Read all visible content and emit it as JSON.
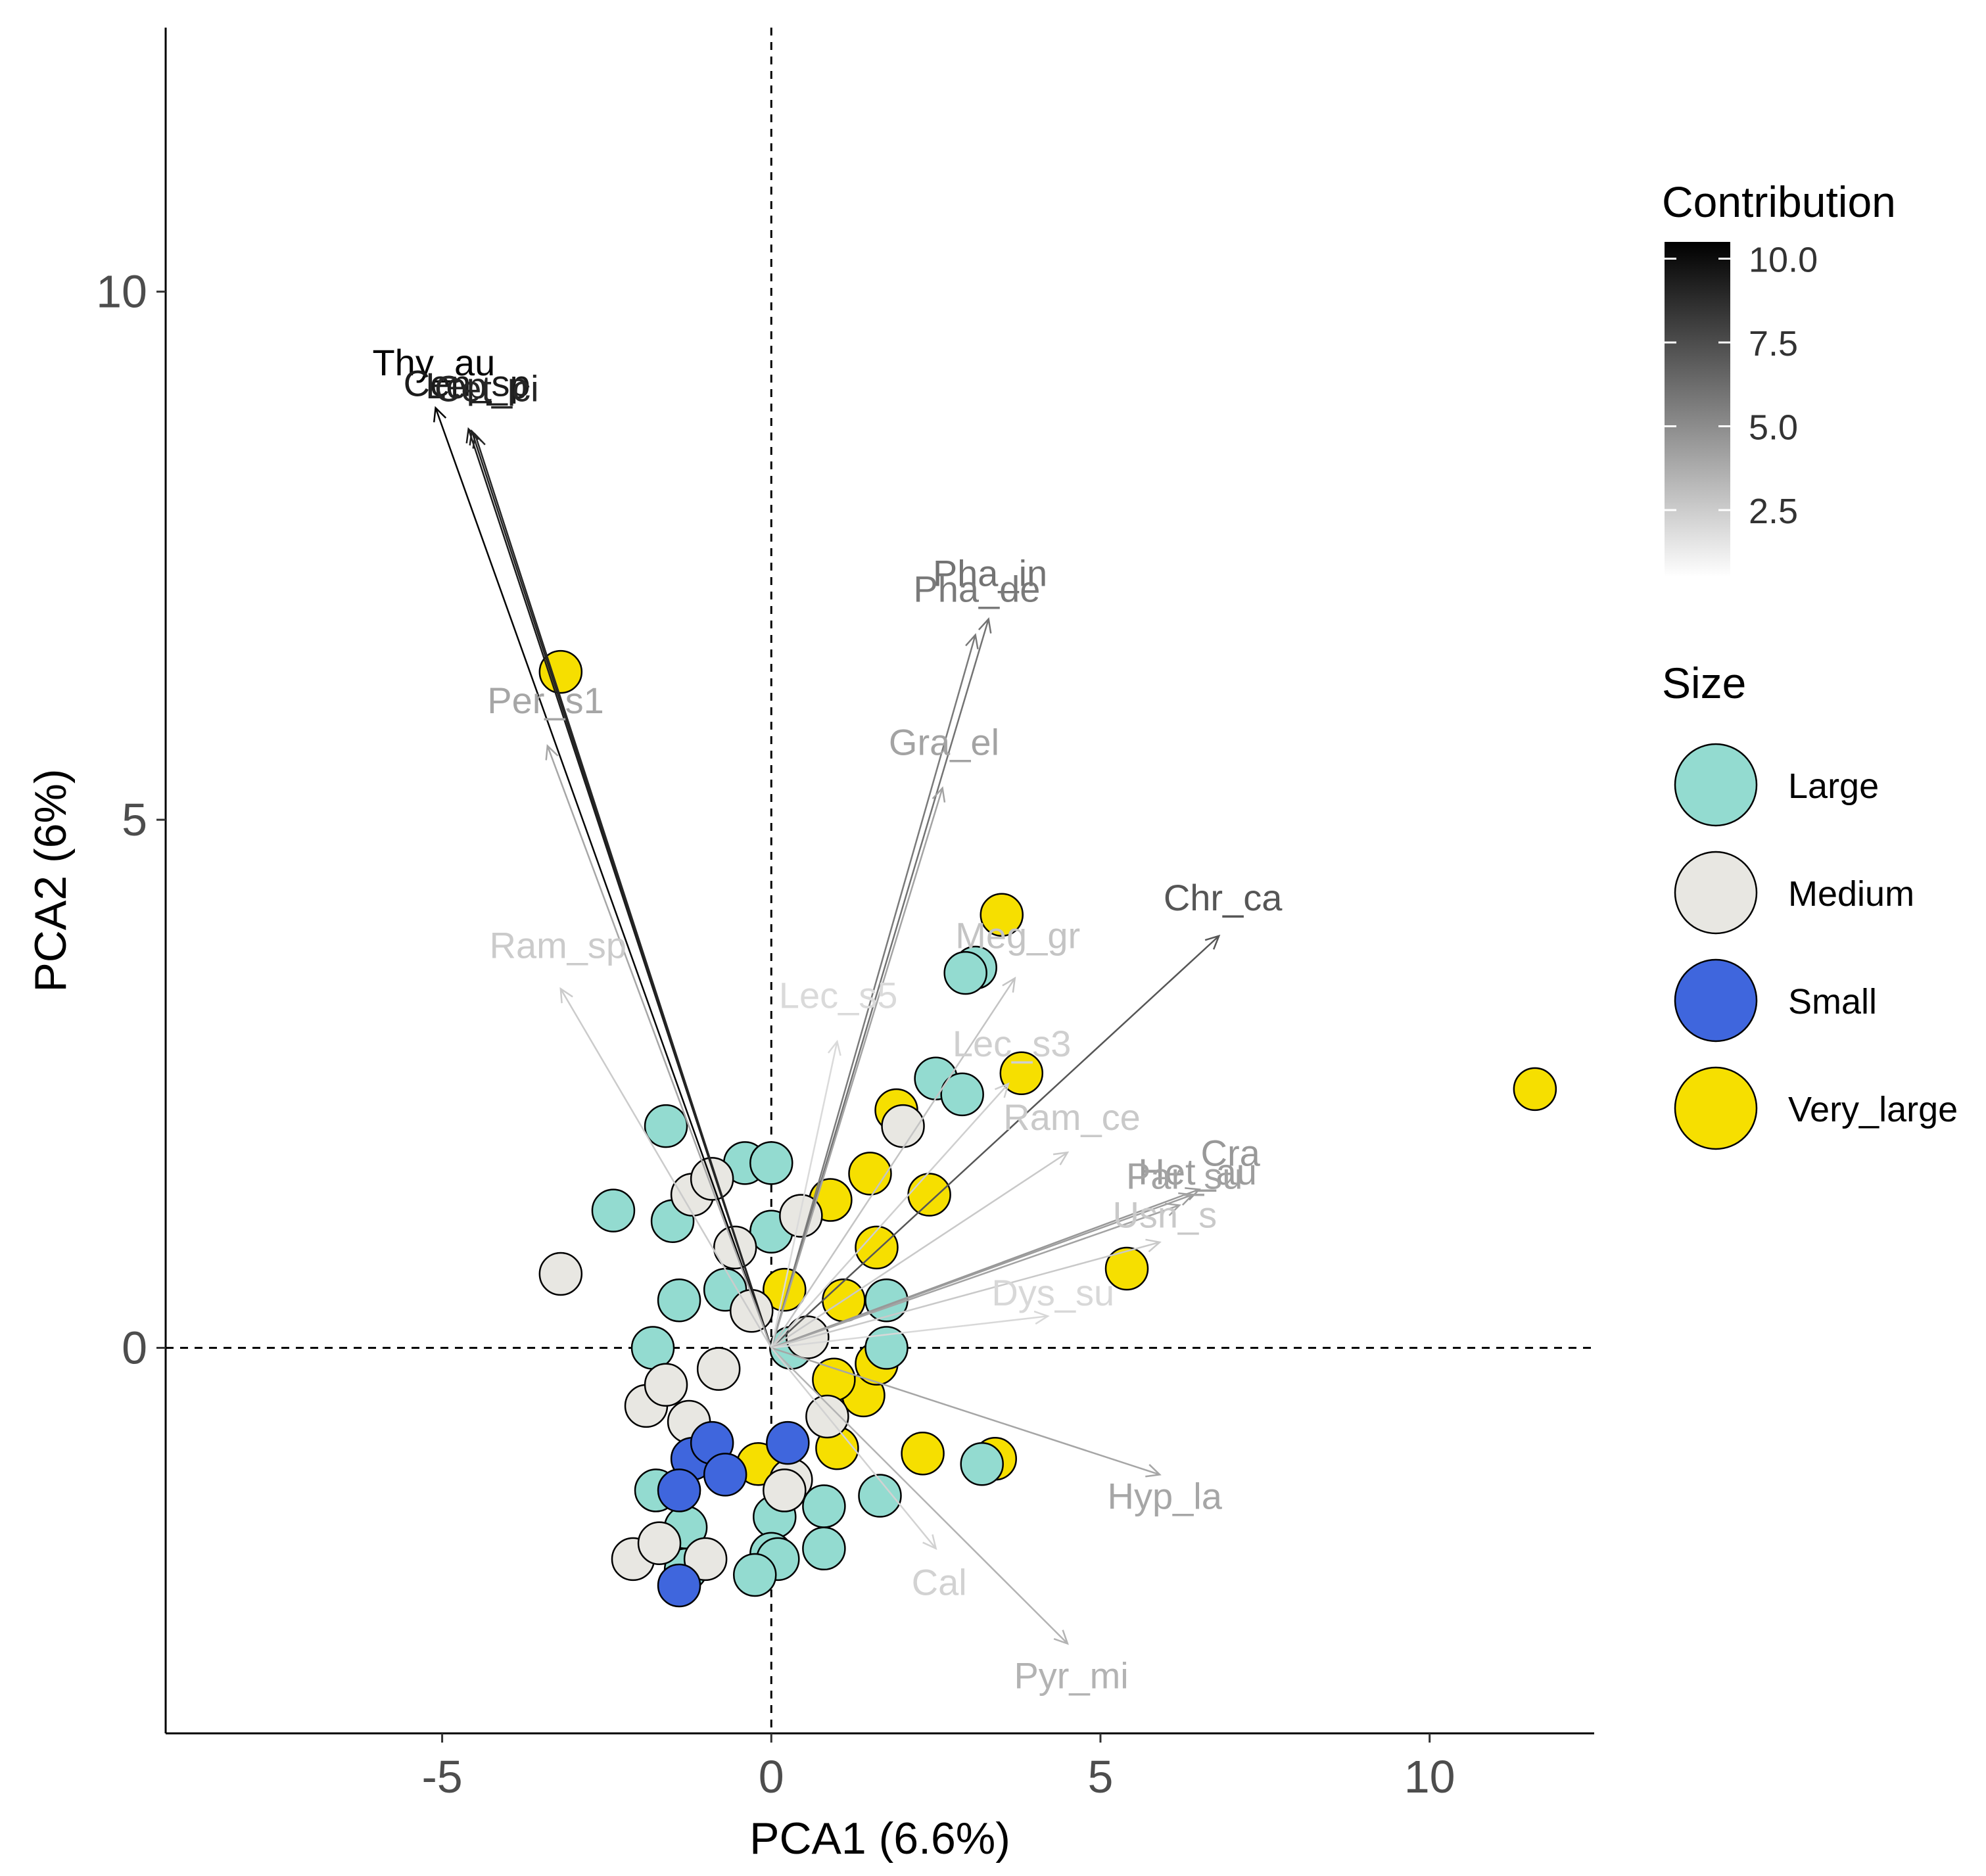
{
  "chart_data": {
    "type": "scatter",
    "subtype": "pca-biplot",
    "title": "",
    "xlabel": "PCA1 (6.6%)",
    "ylabel": "PCA2 (6%)",
    "xlim": [
      -9.2,
      12.5
    ],
    "ylim": [
      -3.65,
      12.5
    ],
    "xticks": [
      -5,
      0,
      5,
      10
    ],
    "xtick_labels": [
      "-5",
      "0",
      "5",
      "10"
    ],
    "yticks": [
      0,
      5,
      10
    ],
    "ytick_labels": [
      "0",
      "5",
      "10"
    ],
    "reference_lines": {
      "x": 0,
      "y": 0,
      "style": "dashed"
    },
    "grid": false,
    "legends": {
      "contribution": {
        "title": "Contribution",
        "ticks": [
          10.0,
          7.5,
          5.0,
          2.5
        ],
        "tick_labels": [
          "10.0",
          "7.5",
          "5.0",
          "2.5"
        ],
        "range": [
          0.5,
          10.5
        ],
        "colors": [
          "#ffffff",
          "#000000"
        ]
      },
      "size": {
        "title": "Size",
        "entries": [
          {
            "label": "Large",
            "color": "#93dbd0"
          },
          {
            "label": "Medium",
            "color": "#e8e7e2"
          },
          {
            "label": "Small",
            "color": "#3f66dd"
          },
          {
            "label": "Very_large",
            "color": "#f6df00"
          }
        ]
      }
    },
    "loadings": [
      {
        "label": "Thy_au",
        "x": -5.1,
        "y": 8.9,
        "contrib": 10.5
      },
      {
        "label": "Cen_sp",
        "x": -4.6,
        "y": 8.7,
        "contrib": 9.5
      },
      {
        "label": "Lep_p",
        "x": -4.55,
        "y": 8.68,
        "contrib": 9.2
      },
      {
        "label": "Cet_ci",
        "x": -4.5,
        "y": 8.65,
        "contrib": 9.0
      },
      {
        "label": "Per_s1",
        "x": -3.4,
        "y": 5.7,
        "contrib": 3.2
      },
      {
        "label": "Ram_sp",
        "x": -3.2,
        "y": 3.4,
        "contrib": 1.5
      },
      {
        "label": "Pha_in",
        "x": 3.3,
        "y": 6.9,
        "contrib": 5.5
      },
      {
        "label": "Pha_de",
        "x": 3.1,
        "y": 6.75,
        "contrib": 5.2
      },
      {
        "label": "Gra_el",
        "x": 2.6,
        "y": 5.3,
        "contrib": 3.3
      },
      {
        "label": "Chr_ca",
        "x": 6.8,
        "y": 3.9,
        "contrib": 6.8
      },
      {
        "label": "Meg_gr",
        "x": 3.7,
        "y": 3.5,
        "contrib": 1.8
      },
      {
        "label": "Lec_s5",
        "x": 1.0,
        "y": 2.9,
        "contrib": 0.8
      },
      {
        "label": "Lec_s3",
        "x": 3.6,
        "y": 2.5,
        "contrib": 1.3
      },
      {
        "label": "Ram_ce",
        "x": 4.5,
        "y": 1.85,
        "contrib": 1.6
      },
      {
        "label": "Het_au",
        "x": 6.4,
        "y": 1.45,
        "contrib": 3.6
      },
      {
        "label": "Cra",
        "x": 6.5,
        "y": 1.5,
        "contrib": 3.8
      },
      {
        "label": "Par_su",
        "x": 6.2,
        "y": 1.35,
        "contrib": 3.3
      },
      {
        "label": "Usn_s",
        "x": 5.9,
        "y": 1.0,
        "contrib": 1.6
      },
      {
        "label": "Dys_su",
        "x": 4.2,
        "y": 0.3,
        "contrib": 0.9
      },
      {
        "label": "Hyp_la",
        "x": 5.9,
        "y": -1.2,
        "contrib": 3.2
      },
      {
        "label": "Pyr_mi",
        "x": 4.5,
        "y": -2.8,
        "contrib": 2.6
      },
      {
        "label": "Cal",
        "x": 2.5,
        "y": -1.9,
        "contrib": 1.2
      }
    ],
    "observations": [
      {
        "x": -3.2,
        "y": 6.4,
        "group": "Very_large"
      },
      {
        "x": 11.6,
        "y": 2.45,
        "group": "Very_large"
      },
      {
        "x": 5.4,
        "y": 0.75,
        "group": "Very_large"
      },
      {
        "x": 3.5,
        "y": 4.1,
        "group": "Very_large"
      },
      {
        "x": 3.8,
        "y": 2.6,
        "group": "Very_large"
      },
      {
        "x": 3.4,
        "y": -1.05,
        "group": "Very_large"
      },
      {
        "x": 2.3,
        "y": -1.0,
        "group": "Very_large"
      },
      {
        "x": 1.4,
        "y": -0.45,
        "group": "Very_large"
      },
      {
        "x": 1.6,
        "y": -0.15,
        "group": "Very_large"
      },
      {
        "x": 1.0,
        "y": -0.95,
        "group": "Very_large"
      },
      {
        "x": 1.9,
        "y": 2.25,
        "group": "Very_large"
      },
      {
        "x": 2.4,
        "y": 1.45,
        "group": "Very_large"
      },
      {
        "x": 1.5,
        "y": 1.65,
        "group": "Very_large"
      },
      {
        "x": 0.9,
        "y": 1.4,
        "group": "Very_large"
      },
      {
        "x": 1.6,
        "y": 0.95,
        "group": "Very_large"
      },
      {
        "x": 1.1,
        "y": 0.45,
        "group": "Very_large"
      },
      {
        "x": 0.2,
        "y": 0.55,
        "group": "Very_large"
      },
      {
        "x": 0.95,
        "y": -0.3,
        "group": "Very_large"
      },
      {
        "x": -0.2,
        "y": -1.1,
        "group": "Very_large"
      },
      {
        "x": 3.1,
        "y": 3.6,
        "group": "Large"
      },
      {
        "x": 2.95,
        "y": 3.55,
        "group": "Large"
      },
      {
        "x": 2.5,
        "y": 2.55,
        "group": "Large"
      },
      {
        "x": 2.9,
        "y": 2.4,
        "group": "Large"
      },
      {
        "x": -1.6,
        "y": 2.1,
        "group": "Large"
      },
      {
        "x": -2.4,
        "y": 1.3,
        "group": "Large"
      },
      {
        "x": -1.5,
        "y": 1.2,
        "group": "Large"
      },
      {
        "x": -0.4,
        "y": 1.75,
        "group": "Large"
      },
      {
        "x": 0.0,
        "y": 1.75,
        "group": "Large"
      },
      {
        "x": 0.0,
        "y": 1.1,
        "group": "Large"
      },
      {
        "x": -1.4,
        "y": 0.45,
        "group": "Large"
      },
      {
        "x": -1.8,
        "y": 0.0,
        "group": "Large"
      },
      {
        "x": 1.75,
        "y": 0.45,
        "group": "Large"
      },
      {
        "x": 1.75,
        "y": 0.0,
        "group": "Large"
      },
      {
        "x": 3.2,
        "y": -1.1,
        "group": "Large"
      },
      {
        "x": 0.8,
        "y": -1.5,
        "group": "Large"
      },
      {
        "x": 1.65,
        "y": -1.4,
        "group": "Large"
      },
      {
        "x": 0.8,
        "y": -1.9,
        "group": "Large"
      },
      {
        "x": 0.05,
        "y": -1.6,
        "group": "Large"
      },
      {
        "x": 0.0,
        "y": -1.95,
        "group": "Large"
      },
      {
        "x": 0.1,
        "y": -2.0,
        "group": "Large"
      },
      {
        "x": -0.25,
        "y": -2.15,
        "group": "Large"
      },
      {
        "x": -1.3,
        "y": -1.7,
        "group": "Large"
      },
      {
        "x": -1.3,
        "y": -2.1,
        "group": "Large"
      },
      {
        "x": -1.75,
        "y": -1.35,
        "group": "Large"
      },
      {
        "x": 0.3,
        "y": 0.0,
        "group": "Large"
      },
      {
        "x": -0.7,
        "y": 0.55,
        "group": "Large"
      },
      {
        "x": -3.2,
        "y": 0.7,
        "group": "Medium"
      },
      {
        "x": -1.2,
        "y": 1.45,
        "group": "Medium"
      },
      {
        "x": -0.9,
        "y": 1.6,
        "group": "Medium"
      },
      {
        "x": -0.55,
        "y": 0.95,
        "group": "Medium"
      },
      {
        "x": 0.45,
        "y": 1.25,
        "group": "Medium"
      },
      {
        "x": -0.3,
        "y": 0.35,
        "group": "Medium"
      },
      {
        "x": -1.9,
        "y": -0.55,
        "group": "Medium"
      },
      {
        "x": -1.6,
        "y": -0.35,
        "group": "Medium"
      },
      {
        "x": -1.25,
        "y": -0.7,
        "group": "Medium"
      },
      {
        "x": -0.8,
        "y": -0.2,
        "group": "Medium"
      },
      {
        "x": 0.85,
        "y": -0.65,
        "group": "Medium"
      },
      {
        "x": 0.3,
        "y": -1.25,
        "group": "Medium"
      },
      {
        "x": -2.1,
        "y": -2.0,
        "group": "Medium"
      },
      {
        "x": -1.7,
        "y": -1.85,
        "group": "Medium"
      },
      {
        "x": -1.0,
        "y": -2.0,
        "group": "Medium"
      },
      {
        "x": 0.2,
        "y": -1.35,
        "group": "Medium"
      },
      {
        "x": 2.0,
        "y": 2.1,
        "group": "Medium"
      },
      {
        "x": 0.55,
        "y": 0.1,
        "group": "Medium"
      },
      {
        "x": -1.2,
        "y": -1.05,
        "group": "Small"
      },
      {
        "x": -0.9,
        "y": -0.9,
        "group": "Small"
      },
      {
        "x": -1.4,
        "y": -1.35,
        "group": "Small"
      },
      {
        "x": -0.7,
        "y": -1.2,
        "group": "Small"
      },
      {
        "x": 0.25,
        "y": -0.9,
        "group": "Small"
      },
      {
        "x": -1.4,
        "y": -2.25,
        "group": "Small"
      }
    ]
  }
}
